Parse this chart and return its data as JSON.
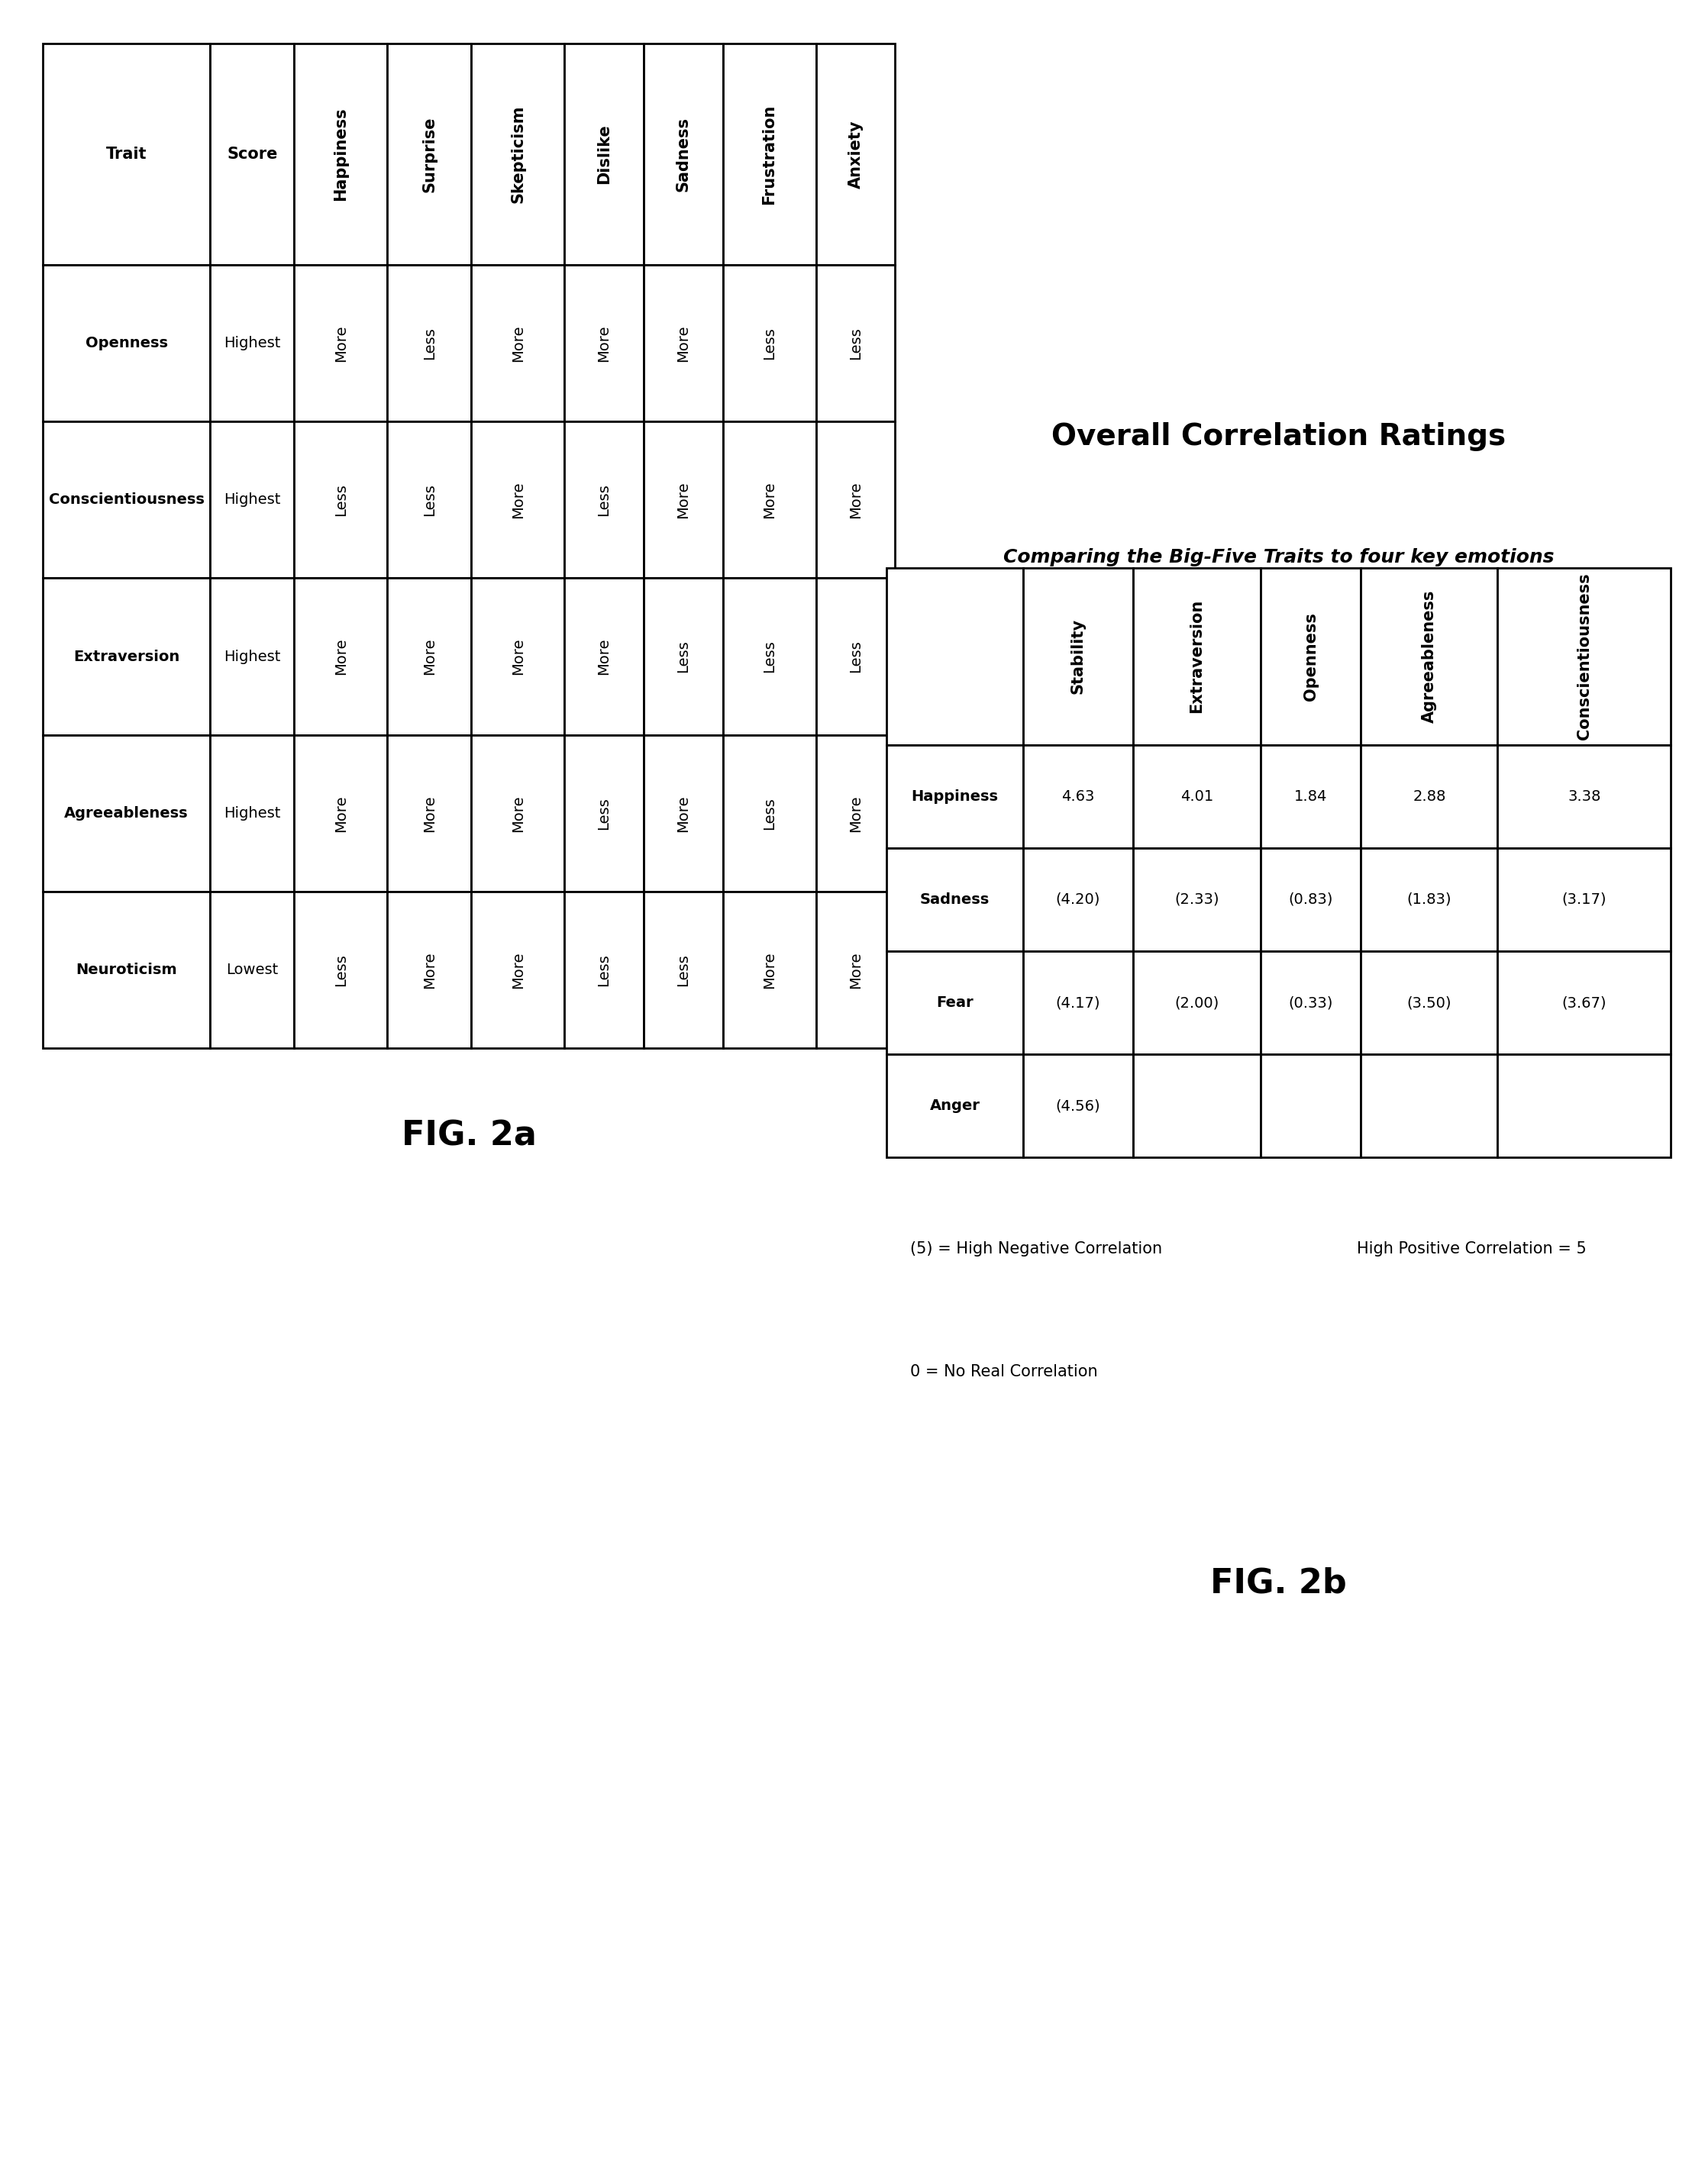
{
  "fig2a": {
    "columns": [
      "Trait",
      "Score",
      "Happiness",
      "Surprise",
      "Skepticism",
      "Dislike",
      "Sadness",
      "Frustration",
      "Anxiety"
    ],
    "rows": [
      [
        "Openness",
        "Highest",
        "More",
        "Less",
        "More",
        "More",
        "More",
        "Less",
        "Less"
      ],
      [
        "Conscientiousness",
        "Highest",
        "Less",
        "Less",
        "More",
        "Less",
        "More",
        "More",
        "More"
      ],
      [
        "Extraversion",
        "Highest",
        "More",
        "More",
        "More",
        "More",
        "Less",
        "Less",
        "Less"
      ],
      [
        "Agreeableness",
        "Highest",
        "More",
        "More",
        "More",
        "Less",
        "More",
        "Less",
        "More"
      ],
      [
        "Neuroticism",
        "Lowest",
        "Less",
        "More",
        "More",
        "Less",
        "Less",
        "More",
        "More"
      ]
    ]
  },
  "fig2b": {
    "title": "Overall Correlation Ratings",
    "subtitle": "Comparing the Big-Five Traits to four key emotions",
    "columns": [
      "",
      "Stability",
      "Extraversion",
      "Openness",
      "Agreeableness",
      "Conscientiousness"
    ],
    "rows": [
      [
        "Happiness",
        "4.63",
        "4.01",
        "1.84",
        "2.88",
        "3.38"
      ],
      [
        "Sadness",
        "(4.20)",
        "(2.33)",
        "(0.83)",
        "(1.83)",
        "(3.17)"
      ],
      [
        "Fear",
        "(4.17)",
        "(2.00)",
        "(0.33)",
        "(3.50)",
        "(3.67)"
      ],
      [
        "Anger",
        "(4.56)",
        "",
        "",
        "",
        ""
      ]
    ],
    "notes_left_top": "(5) = High Negative Correlation",
    "notes_left_bot": "0 = No Real Correlation",
    "notes_right": "High Positive Correlation = 5"
  },
  "label_fig2a": "FIG. 2a",
  "label_fig2b": "FIG. 2b",
  "bg_color": "#ffffff",
  "border_color": "#000000",
  "lw": 2.0,
  "header_fontsize": 15,
  "cell_fontsize": 14,
  "label_fontsize": 32,
  "title_fontsize": 28,
  "subtitle_fontsize": 18,
  "note_fontsize": 15
}
